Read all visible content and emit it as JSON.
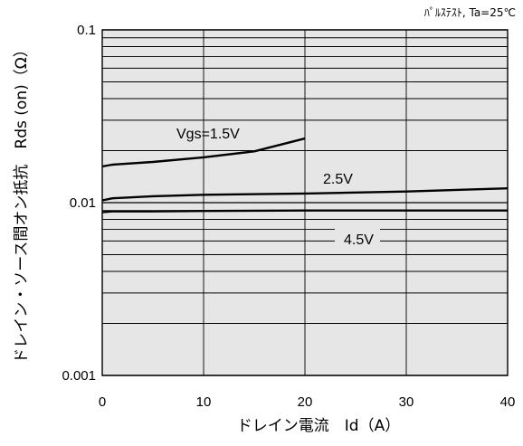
{
  "chart_data": {
    "type": "line",
    "title": "",
    "condition": "ﾊﾟﾙｽﾃｽﾄ, Ta=25℃",
    "xlabel": "ドレイン電流　Id（A）",
    "ylabel": "ドレイン・ソース間オン抵抗　Rds (on)（Ω）",
    "xlim": [
      0,
      40
    ],
    "ylim": [
      0.001,
      0.1
    ],
    "yscale": "log",
    "grid": true,
    "x_ticks": [
      0,
      10,
      20,
      30,
      40
    ],
    "x_tick_labels": [
      "0",
      "10",
      "20",
      "30",
      "40"
    ],
    "y_ticks": [
      0.001,
      0.01,
      0.1
    ],
    "y_tick_labels": [
      "0.001",
      "0.01",
      "0.1"
    ],
    "series": [
      {
        "name": "Vgs=1.5V",
        "x": [
          0,
          1,
          5,
          10,
          15,
          20
        ],
        "y": [
          0.0162,
          0.0166,
          0.0172,
          0.0183,
          0.0198,
          0.0235
        ]
      },
      {
        "name": "2.5V",
        "x": [
          0,
          1,
          5,
          10,
          20,
          30,
          40
        ],
        "y": [
          0.0103,
          0.0106,
          0.0109,
          0.0111,
          0.0113,
          0.0116,
          0.0121
        ]
      },
      {
        "name": "4.5V",
        "x": [
          0,
          1,
          5,
          10,
          20,
          30,
          40
        ],
        "y": [
          0.0088,
          0.0089,
          0.0089,
          0.00895,
          0.009,
          0.009,
          0.009
        ]
      }
    ]
  }
}
